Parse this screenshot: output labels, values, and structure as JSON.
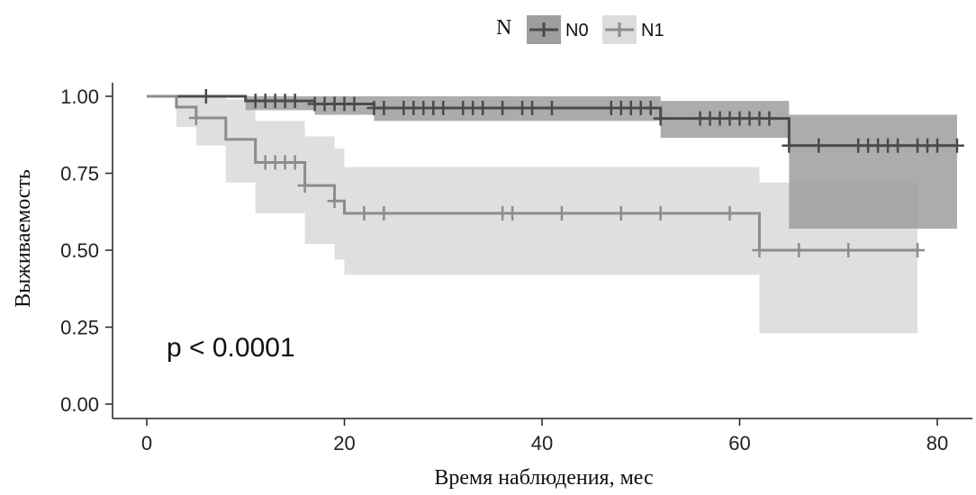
{
  "chart_data": {
    "type": "line",
    "subtype": "kaplan-meier",
    "title": "",
    "xlabel": "Время наблюдения, мес",
    "ylabel": "Выживаемость",
    "xlim": [
      0,
      82
    ],
    "ylim": [
      0,
      1
    ],
    "x_ticks": [
      0,
      20,
      40,
      60,
      80
    ],
    "y_ticks": [
      0.0,
      0.25,
      0.5,
      0.75,
      1.0
    ],
    "x_tick_labels": [
      "0",
      "20",
      "40",
      "60",
      "80"
    ],
    "y_tick_labels": [
      "0.00",
      "0.25",
      "0.50",
      "0.75",
      "1.00"
    ],
    "grid": false,
    "legend": {
      "title": "N",
      "position": "top-center",
      "entries": [
        "N0",
        "N1"
      ]
    },
    "annotation": "p < 0.0001",
    "series": [
      {
        "name": "N0",
        "color": "#4a4a4a",
        "band_color": "#9e9e9e",
        "steps": [
          [
            0,
            1.0
          ],
          [
            10,
            0.985
          ],
          [
            17,
            0.975
          ],
          [
            23,
            0.962
          ],
          [
            52,
            0.928
          ],
          [
            65,
            0.84
          ],
          [
            82,
            0.84
          ]
        ],
        "ci": [
          [
            0,
            1.0,
            1.0
          ],
          [
            10,
            0.955,
            1.0
          ],
          [
            17,
            0.94,
            1.0
          ],
          [
            23,
            0.92,
            1.0
          ],
          [
            52,
            0.865,
            0.985
          ],
          [
            65,
            0.57,
            0.94
          ],
          [
            82,
            0.57,
            0.94
          ]
        ],
        "censored": [
          6,
          11,
          12,
          13,
          14,
          15,
          17,
          18,
          19,
          20,
          21,
          23,
          24,
          26,
          27,
          28,
          29,
          30,
          32,
          33,
          34,
          36,
          38,
          39,
          41,
          47,
          48,
          49,
          50,
          51,
          52,
          56,
          57,
          58,
          59,
          60,
          61,
          62,
          63,
          65,
          68,
          72,
          73,
          74,
          75,
          76,
          78,
          79,
          80,
          82
        ]
      },
      {
        "name": "N1",
        "color": "#8c8c8c",
        "band_color": "#dcdcdc",
        "steps": [
          [
            0,
            1.0
          ],
          [
            3,
            0.965
          ],
          [
            5,
            0.93
          ],
          [
            8,
            0.86
          ],
          [
            11,
            0.785
          ],
          [
            16,
            0.71
          ],
          [
            19,
            0.66
          ],
          [
            20,
            0.62
          ],
          [
            62,
            0.5
          ],
          [
            78,
            0.5
          ]
        ],
        "ci": [
          [
            0,
            1.0,
            1.0
          ],
          [
            3,
            0.9,
            1.0
          ],
          [
            5,
            0.84,
            1.0
          ],
          [
            8,
            0.72,
            0.99
          ],
          [
            11,
            0.62,
            0.92
          ],
          [
            16,
            0.52,
            0.87
          ],
          [
            19,
            0.47,
            0.83
          ],
          [
            20,
            0.42,
            0.77
          ],
          [
            62,
            0.23,
            0.72
          ],
          [
            78,
            0.23,
            0.72
          ]
        ],
        "censored": [
          5,
          12,
          13,
          14,
          15,
          16,
          19,
          22,
          24,
          36,
          37,
          42,
          48,
          52,
          59,
          62,
          66,
          71,
          78
        ]
      }
    ]
  }
}
